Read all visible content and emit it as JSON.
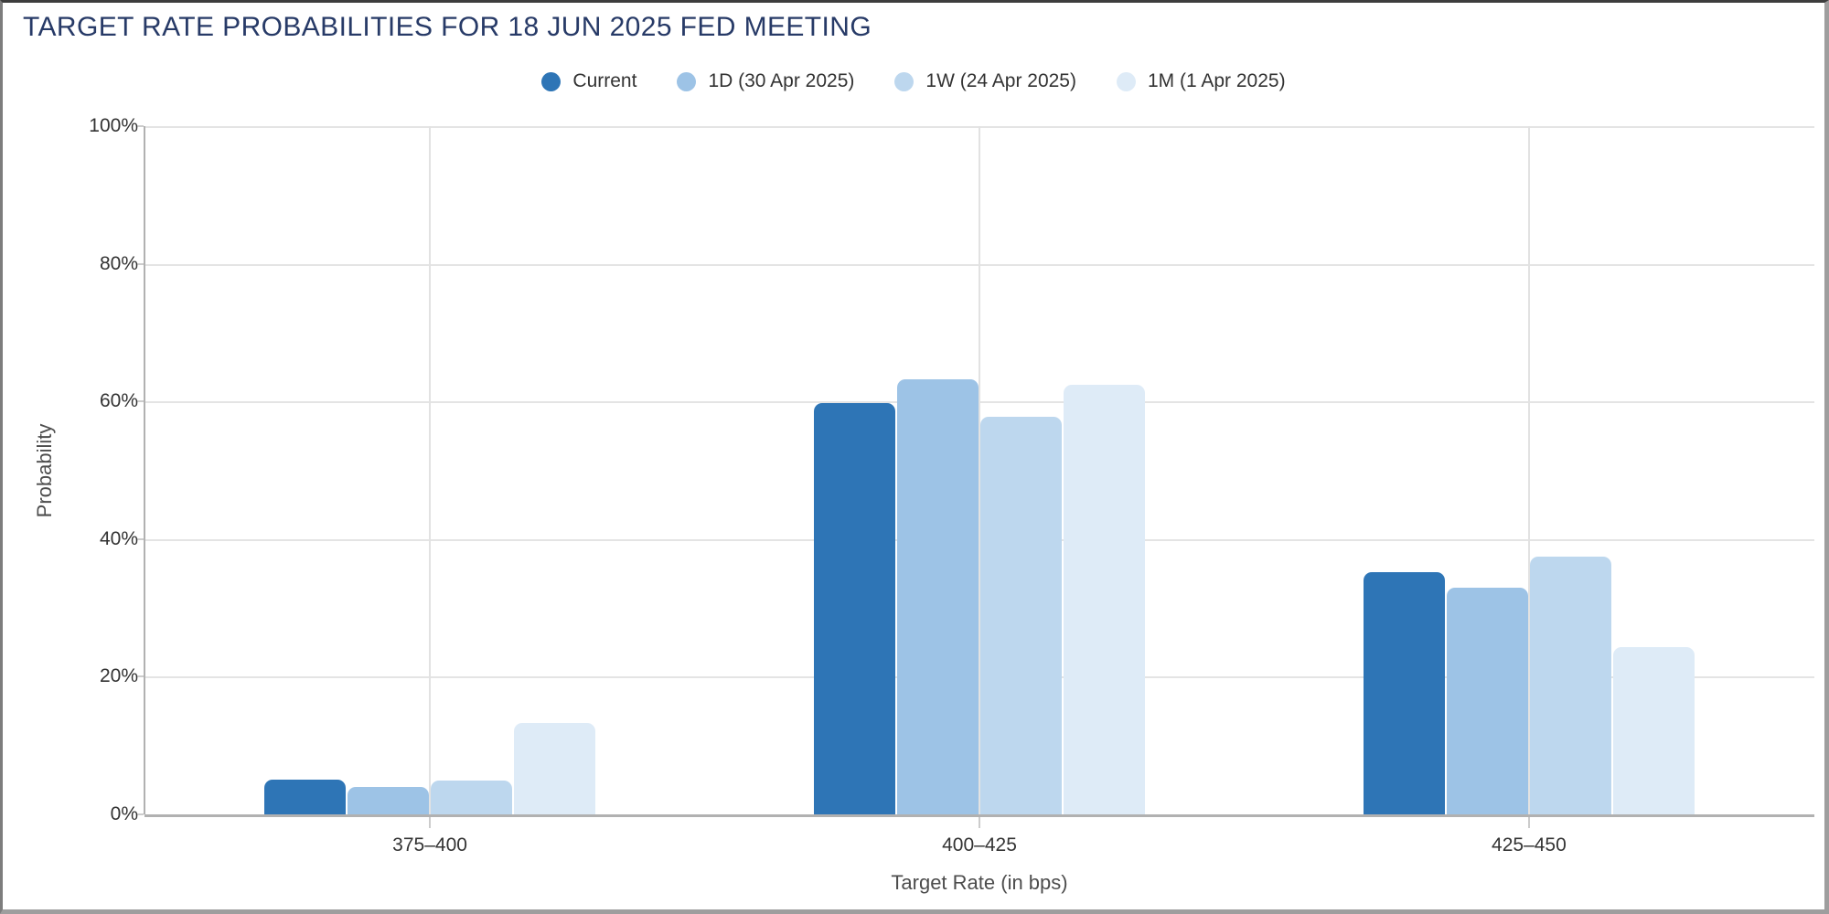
{
  "header": {
    "title": "TARGET RATE PROBABILITIES FOR 18 JUN 2025 FED MEETING",
    "title_color": "#273a67"
  },
  "chart_data": {
    "type": "bar",
    "title": "TARGET RATE PROBABILITIES FOR 18 JUN 2025 FED MEETING",
    "categories": [
      "375–400",
      "400–425",
      "425–450"
    ],
    "series": [
      {
        "name": "Current",
        "color": "#2E75B6",
        "values": [
          5.1,
          59.7,
          35.2
        ]
      },
      {
        "name": "1D (30 Apr 2025)",
        "color": "#9DC3E6",
        "values": [
          4.0,
          63.2,
          32.9
        ]
      },
      {
        "name": "1W (24 Apr 2025)",
        "color": "#BDD7EE",
        "values": [
          4.9,
          57.8,
          37.4
        ]
      },
      {
        "name": "1M (1 Apr 2025)",
        "color": "#DEEBF7",
        "values": [
          13.3,
          62.4,
          24.3
        ]
      }
    ],
    "xlabel": "Target Rate (in bps)",
    "ylabel": "Probability",
    "ylim": [
      0,
      100
    ],
    "y_tick_step": 20,
    "y_tick_labels": [
      "0%",
      "20%",
      "40%",
      "60%",
      "80%",
      "100%"
    ],
    "legend_position": "top",
    "grid": true
  },
  "colors": {
    "grid_line": "#e4e4e4",
    "axis_line": "#b1b1b1",
    "tick_text": "#333333",
    "axis_title_text": "#4d4d4d"
  }
}
